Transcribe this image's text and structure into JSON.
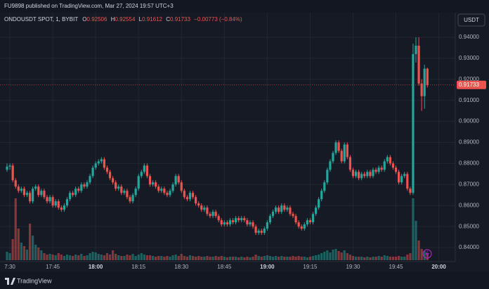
{
  "header": {
    "published": "FU9898 published on TradingView.com, Mar 27, 2024 19:57 UTC+3",
    "currency": "USDT",
    "brand": "TradingView"
  },
  "chart_data": {
    "type": "candlestick",
    "symbol": "ONDOUSDT SPOT, 1, BYBIT",
    "legend_labels": [
      "O",
      "H",
      "L",
      "C"
    ],
    "change": "−0.00773 (−0.84%)",
    "up_color": "#26a69a",
    "down_color": "#ef5350",
    "grid": true,
    "ylim": [
      0.834,
      0.9517
    ],
    "yticks": [
      {
        "value": 0.94,
        "label": "0.94000"
      },
      {
        "value": 0.93,
        "label": "0.93000"
      },
      {
        "value": 0.92,
        "label": "0.92000"
      },
      {
        "value": 0.91,
        "label": "0.91000"
      },
      {
        "value": 0.9,
        "label": "0.90000"
      },
      {
        "value": 0.89,
        "label": "0.89000"
      },
      {
        "value": 0.88,
        "label": "0.88000"
      },
      {
        "value": 0.87,
        "label": "0.87000"
      },
      {
        "value": 0.86,
        "label": "0.86000"
      },
      {
        "value": 0.85,
        "label": "0.85000"
      },
      {
        "value": 0.84,
        "label": "0.84000"
      }
    ],
    "volume_lim": [
      0,
      100
    ],
    "categories": [
      null,
      "7:30",
      null,
      null,
      null,
      null,
      null,
      null,
      null,
      null,
      null,
      null,
      null,
      null,
      null,
      null,
      "17:45",
      null,
      null,
      null,
      null,
      null,
      null,
      null,
      null,
      null,
      null,
      null,
      null,
      null,
      null,
      "18:00",
      null,
      null,
      null,
      null,
      null,
      null,
      null,
      null,
      null,
      null,
      null,
      null,
      null,
      null,
      "18:15",
      null,
      null,
      null,
      null,
      null,
      null,
      null,
      null,
      null,
      null,
      null,
      null,
      null,
      null,
      "18:30",
      null,
      null,
      null,
      null,
      null,
      null,
      null,
      null,
      null,
      null,
      null,
      null,
      null,
      null,
      "18:45",
      null,
      null,
      null,
      null,
      null,
      null,
      null,
      null,
      null,
      null,
      null,
      null,
      null,
      null,
      "19:00",
      null,
      null,
      null,
      null,
      null,
      null,
      null,
      null,
      null,
      null,
      null,
      null,
      null,
      null,
      "19:15",
      null,
      null,
      null,
      null,
      null,
      null,
      null,
      null,
      null,
      null,
      null,
      null,
      null,
      null,
      "19:30",
      null,
      null,
      null,
      null,
      null,
      null,
      null,
      null,
      null,
      null,
      null,
      null,
      null,
      null,
      "19:45",
      null,
      null,
      null,
      null,
      null,
      null,
      null,
      null,
      null,
      null,
      null,
      null,
      null,
      null,
      "20:00"
    ],
    "open": [
      0.877,
      0.8785,
      0.879,
      0.872,
      0.869,
      0.867,
      0.868,
      0.865,
      0.866,
      0.862,
      0.868,
      0.869,
      0.865,
      0.867,
      0.864,
      0.862,
      0.864,
      0.86,
      0.862,
      0.859,
      0.858,
      0.86,
      0.863,
      0.866,
      0.865,
      0.868,
      0.867,
      0.87,
      0.869,
      0.871,
      0.874,
      0.878,
      0.88,
      0.881,
      0.882,
      0.878,
      0.876,
      0.873,
      0.871,
      0.868,
      0.869,
      0.866,
      0.867,
      0.864,
      0.862,
      0.865,
      0.868,
      0.874,
      0.876,
      0.879,
      0.874,
      0.87,
      0.871,
      0.869,
      0.867,
      0.868,
      0.866,
      0.865,
      0.867,
      0.87,
      0.874,
      0.871,
      0.867,
      0.864,
      0.863,
      0.866,
      0.864,
      0.861,
      0.86,
      0.858,
      0.859,
      0.856,
      0.855,
      0.857,
      0.855,
      0.853,
      0.851,
      0.852,
      0.851,
      0.853,
      0.852,
      0.854,
      0.853,
      0.854,
      0.853,
      0.851,
      0.852,
      0.85,
      0.847,
      0.848,
      0.847,
      0.849,
      0.852,
      0.855,
      0.857,
      0.859,
      0.857,
      0.86,
      0.858,
      0.859,
      0.856,
      0.855,
      0.852,
      0.85,
      0.849,
      0.851,
      0.853,
      0.852,
      0.856,
      0.859,
      0.863,
      0.867,
      0.871,
      0.877,
      0.881,
      0.885,
      0.89,
      0.886,
      0.881,
      0.889,
      0.883,
      0.877,
      0.874,
      0.876,
      0.873,
      0.875,
      0.874,
      0.876,
      0.874,
      0.877,
      0.876,
      0.878,
      0.877,
      0.881,
      0.883,
      0.88,
      0.878,
      0.876,
      0.871,
      0.874,
      0.875,
      0.868,
      0.866,
      0.932,
      0.936,
      0.918,
      0.912,
      0.92506,
      null,
      null,
      null,
      null
    ],
    "high": [
      0.88,
      0.88,
      0.88,
      0.873,
      0.87,
      0.869,
      0.869,
      0.867,
      0.867,
      0.869,
      0.87,
      0.87,
      0.868,
      0.868,
      0.865,
      0.865,
      0.865,
      0.863,
      0.863,
      0.86,
      0.861,
      0.864,
      0.867,
      0.867,
      0.869,
      0.869,
      0.871,
      0.871,
      0.872,
      0.875,
      0.879,
      0.881,
      0.882,
      0.883,
      0.883,
      0.879,
      0.877,
      0.874,
      0.872,
      0.87,
      0.87,
      0.868,
      0.868,
      0.865,
      0.866,
      0.869,
      0.875,
      0.877,
      0.88,
      0.88,
      0.875,
      0.872,
      0.872,
      0.87,
      0.869,
      0.869,
      0.867,
      0.868,
      0.871,
      0.875,
      0.875,
      0.872,
      0.868,
      0.865,
      0.867,
      0.867,
      0.865,
      0.862,
      0.861,
      0.86,
      0.86,
      0.857,
      0.858,
      0.858,
      0.856,
      0.854,
      0.853,
      0.853,
      0.854,
      0.854,
      0.855,
      0.855,
      0.855,
      0.855,
      0.854,
      0.853,
      0.853,
      0.851,
      0.849,
      0.849,
      0.85,
      0.853,
      0.856,
      0.858,
      0.86,
      0.86,
      0.861,
      0.861,
      0.86,
      0.86,
      0.857,
      0.856,
      0.853,
      0.851,
      0.852,
      0.854,
      0.854,
      0.857,
      0.86,
      0.864,
      0.868,
      0.872,
      0.878,
      0.882,
      0.886,
      0.891,
      0.891,
      0.887,
      0.89,
      0.89,
      0.884,
      0.878,
      0.877,
      0.877,
      0.876,
      0.876,
      0.877,
      0.877,
      0.878,
      0.878,
      0.879,
      0.879,
      0.882,
      0.884,
      0.884,
      0.881,
      0.879,
      0.877,
      0.875,
      0.876,
      0.876,
      0.869,
      0.937,
      0.94,
      0.94,
      0.92,
      0.927,
      0.92554,
      null,
      null,
      null,
      null
    ],
    "low": [
      0.876,
      0.877,
      0.871,
      0.868,
      0.866,
      0.866,
      0.864,
      0.864,
      0.861,
      0.861,
      0.867,
      0.864,
      0.864,
      0.863,
      0.861,
      0.861,
      0.859,
      0.859,
      0.858,
      0.857,
      0.857,
      0.859,
      0.862,
      0.864,
      0.864,
      0.866,
      0.866,
      0.868,
      0.868,
      0.87,
      0.873,
      0.877,
      0.879,
      0.88,
      0.877,
      0.875,
      0.872,
      0.87,
      0.867,
      0.867,
      0.865,
      0.865,
      0.863,
      0.861,
      0.861,
      0.864,
      0.867,
      0.873,
      0.875,
      0.873,
      0.869,
      0.869,
      0.868,
      0.866,
      0.866,
      0.865,
      0.864,
      0.864,
      0.866,
      0.869,
      0.87,
      0.866,
      0.863,
      0.862,
      0.862,
      0.863,
      0.86,
      0.859,
      0.857,
      0.857,
      0.855,
      0.854,
      0.854,
      0.854,
      0.852,
      0.85,
      0.85,
      0.85,
      0.85,
      0.851,
      0.851,
      0.852,
      0.852,
      0.852,
      0.85,
      0.85,
      0.849,
      0.846,
      0.846,
      0.846,
      0.846,
      0.848,
      0.851,
      0.854,
      0.856,
      0.856,
      0.856,
      0.857,
      0.857,
      0.855,
      0.854,
      0.851,
      0.849,
      0.848,
      0.848,
      0.85,
      0.851,
      0.851,
      0.855,
      0.858,
      0.862,
      0.866,
      0.87,
      0.876,
      0.88,
      0.884,
      0.885,
      0.88,
      0.88,
      0.882,
      0.876,
      0.873,
      0.873,
      0.872,
      0.872,
      0.873,
      0.873,
      0.873,
      0.873,
      0.875,
      0.875,
      0.876,
      0.876,
      0.88,
      0.879,
      0.877,
      0.875,
      0.87,
      0.87,
      0.873,
      0.867,
      0.865,
      0.865,
      0.928,
      0.917,
      0.905,
      0.906,
      0.91612,
      null,
      null,
      null,
      null
    ],
    "close": [
      0.8785,
      0.879,
      0.872,
      0.869,
      0.867,
      0.868,
      0.865,
      0.866,
      0.862,
      0.868,
      0.869,
      0.865,
      0.867,
      0.864,
      0.862,
      0.864,
      0.86,
      0.862,
      0.859,
      0.858,
      0.86,
      0.863,
      0.866,
      0.865,
      0.868,
      0.867,
      0.87,
      0.869,
      0.871,
      0.874,
      0.878,
      0.88,
      0.881,
      0.882,
      0.878,
      0.876,
      0.873,
      0.871,
      0.868,
      0.869,
      0.866,
      0.867,
      0.864,
      0.862,
      0.865,
      0.868,
      0.874,
      0.876,
      0.879,
      0.874,
      0.87,
      0.871,
      0.869,
      0.867,
      0.868,
      0.866,
      0.865,
      0.867,
      0.87,
      0.874,
      0.871,
      0.867,
      0.864,
      0.863,
      0.866,
      0.864,
      0.861,
      0.86,
      0.858,
      0.859,
      0.856,
      0.855,
      0.857,
      0.855,
      0.853,
      0.851,
      0.852,
      0.851,
      0.853,
      0.852,
      0.854,
      0.853,
      0.854,
      0.853,
      0.851,
      0.852,
      0.85,
      0.847,
      0.848,
      0.847,
      0.849,
      0.852,
      0.855,
      0.857,
      0.859,
      0.857,
      0.86,
      0.858,
      0.859,
      0.856,
      0.855,
      0.852,
      0.85,
      0.849,
      0.851,
      0.853,
      0.852,
      0.856,
      0.859,
      0.863,
      0.867,
      0.871,
      0.877,
      0.881,
      0.885,
      0.89,
      0.886,
      0.881,
      0.889,
      0.883,
      0.877,
      0.874,
      0.876,
      0.873,
      0.875,
      0.874,
      0.876,
      0.874,
      0.877,
      0.876,
      0.878,
      0.877,
      0.881,
      0.883,
      0.88,
      0.878,
      0.876,
      0.871,
      0.874,
      0.875,
      0.868,
      0.866,
      0.932,
      0.936,
      0.918,
      0.912,
      0.92506,
      0.91733,
      null,
      null,
      null,
      null
    ],
    "volume": [
      12,
      10,
      30,
      88,
      45,
      25,
      20,
      15,
      52,
      35,
      22,
      18,
      14,
      10,
      8,
      9,
      8,
      7,
      10,
      8,
      6,
      8,
      7,
      6,
      8,
      7,
      9,
      6,
      7,
      10,
      12,
      11,
      9,
      8,
      7,
      10,
      8,
      14,
      9,
      7,
      6,
      6,
      8,
      7,
      9,
      6,
      8,
      10,
      8,
      7,
      7,
      6,
      5,
      6,
      6,
      5,
      6,
      5,
      7,
      8,
      6,
      9,
      6,
      5,
      7,
      6,
      5,
      6,
      5,
      5,
      6,
      5,
      5,
      6,
      5,
      6,
      5,
      4,
      5,
      5,
      5,
      4,
      5,
      4,
      5,
      4,
      5,
      8,
      6,
      5,
      6,
      7,
      6,
      5,
      6,
      5,
      6,
      5,
      5,
      5,
      6,
      5,
      6,
      5,
      5,
      4,
      5,
      6,
      7,
      8,
      10,
      12,
      14,
      11,
      15,
      16,
      13,
      11,
      14,
      10,
      8,
      6,
      5,
      5,
      5,
      4,
      5,
      4,
      5,
      5,
      6,
      5,
      7,
      6,
      5,
      5,
      5,
      6,
      5,
      5,
      8,
      10,
      88,
      56,
      28,
      16,
      13,
      9,
      null,
      null,
      null,
      null
    ]
  }
}
